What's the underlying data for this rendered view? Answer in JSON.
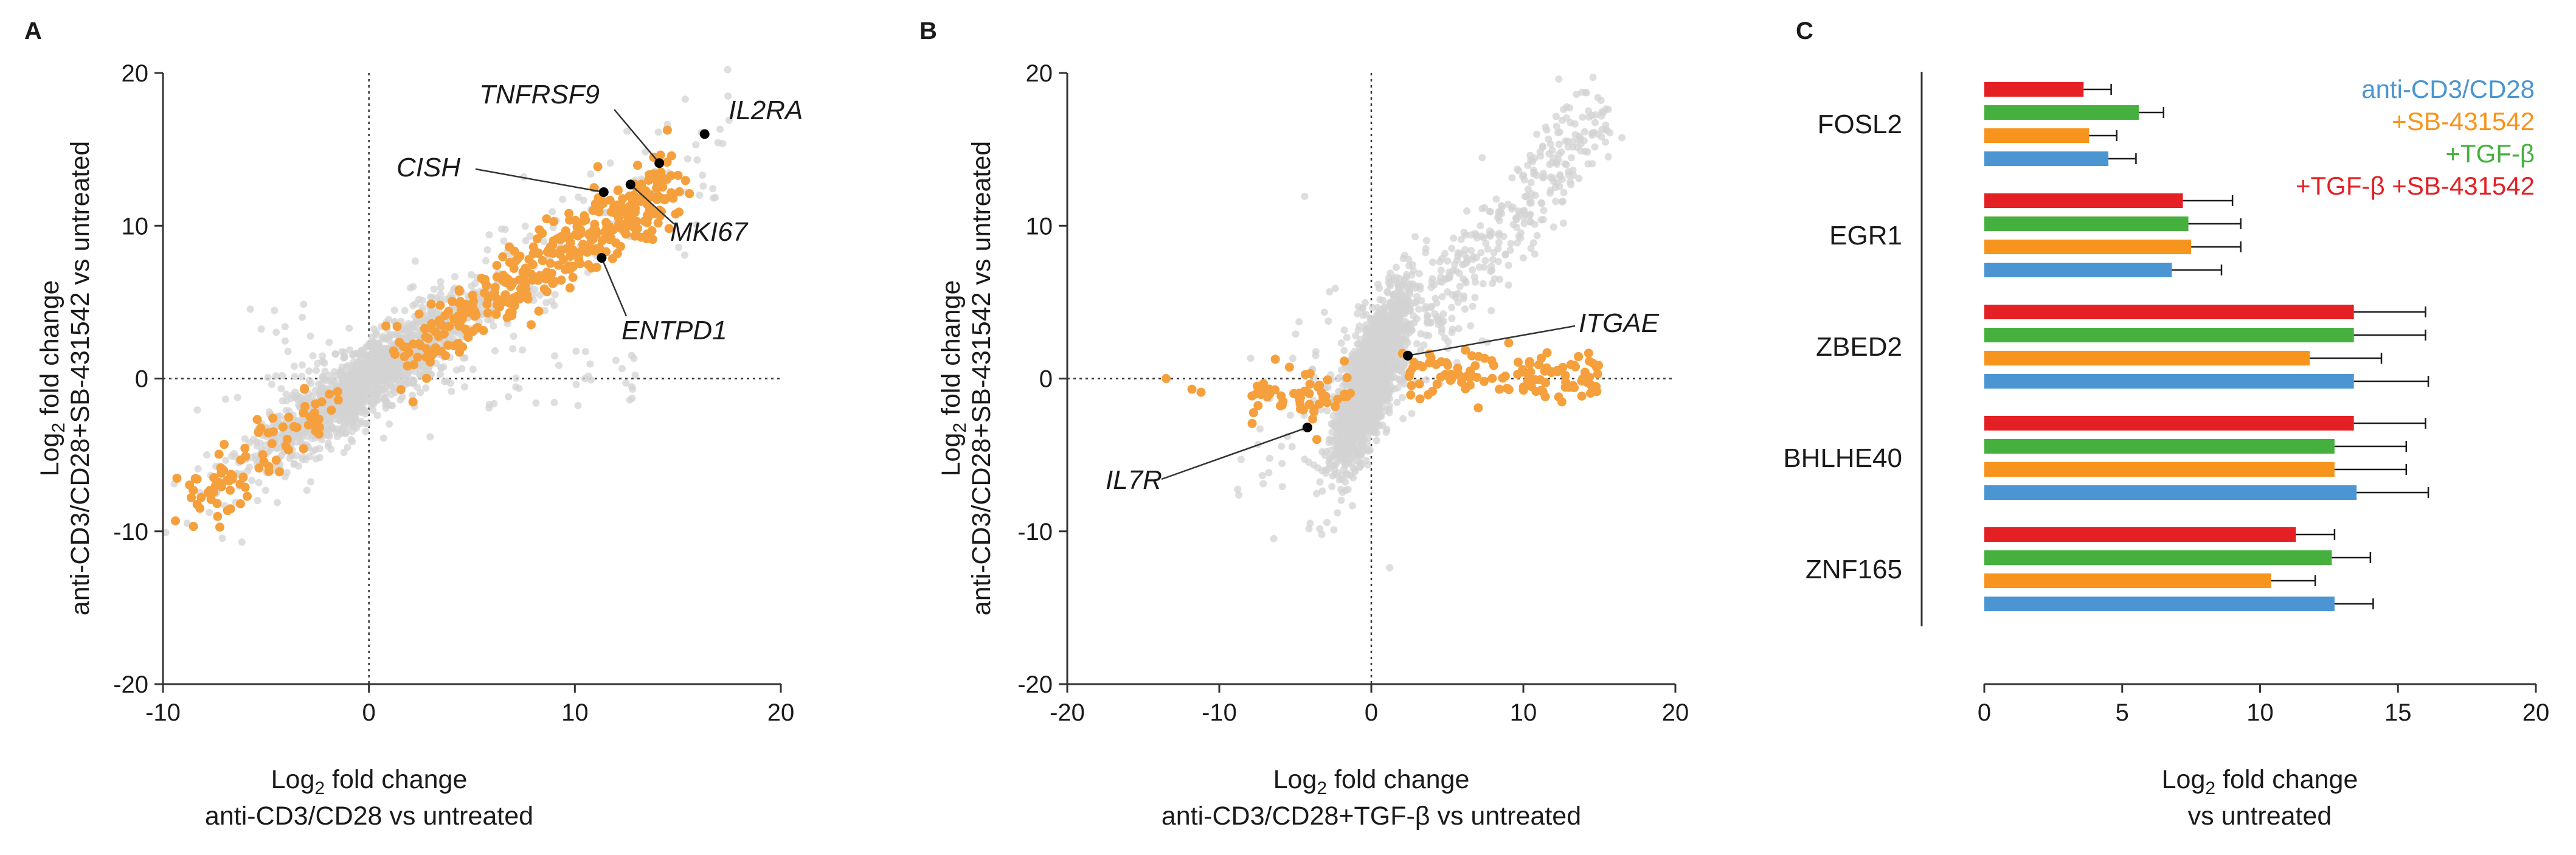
{
  "colors": {
    "background_points": "#d3d3d3",
    "highlight_points": "#f5a03c",
    "labeled_points": "#000000",
    "anti_cd3_cd28": "#4a95d2",
    "sb431542": "#f7941d",
    "tgf_b": "#46b03e",
    "tgf_b_sb431542": "#e42025"
  },
  "panels": [
    {
      "letter": "A",
      "ylabel": {
        "line1_main": "Log",
        "line1_sub": "2",
        "line1_rest": " fold change",
        "line2": "anti-CD3/CD28+SB-431542 vs untreated"
      },
      "xlabel": {
        "line1_main": "Log",
        "line1_sub": "2",
        "line1_rest": " fold change",
        "line2": "anti-CD3/CD28 vs untreated"
      },
      "xticks": [
        "-10",
        "0",
        "10",
        "20"
      ],
      "yticks": [
        "20",
        "10",
        "0",
        "-10",
        "-20"
      ]
    },
    {
      "letter": "B",
      "ylabel": {
        "line1_main": "Log",
        "line1_sub": "2",
        "line1_rest": " fold change",
        "line2": "anti-CD3/CD28+SB-431542 vs untreated"
      },
      "xlabel": {
        "line1_main": "Log",
        "line1_sub": "2",
        "line1_rest": " fold change",
        "line2": "anti-CD3/CD28+TGF-β vs untreated"
      },
      "xticks": [
        "-20",
        "-10",
        "0",
        "10",
        "20"
      ],
      "yticks": [
        "20",
        "10",
        "0",
        "-10",
        "-20"
      ]
    },
    {
      "letter": "C",
      "xlabel": {
        "line1_main": "Log",
        "line1_sub": "2",
        "line1_rest": " fold change",
        "line2": "vs untreated"
      },
      "xticks": [
        "0",
        "5",
        "10",
        "15",
        "20"
      ]
    }
  ],
  "chart_data": [
    {
      "type": "scatter",
      "panel": "A",
      "xlim": [
        -10,
        20
      ],
      "ylim": [
        -20,
        20
      ],
      "reference_lines": {
        "x": 0,
        "y": 0,
        "style": "dotted"
      },
      "labeled_points": [
        {
          "gene": "IL2RA",
          "x": 16.3,
          "y": 16.0
        },
        {
          "gene": "TNFRSF9",
          "x": 14.1,
          "y": 14.1
        },
        {
          "gene": "CISH",
          "x": 11.4,
          "y": 12.2
        },
        {
          "gene": "MKI67",
          "x": 12.7,
          "y": 12.7
        },
        {
          "gene": "ENTPD1",
          "x": 11.3,
          "y": 7.9
        }
      ],
      "series": [
        {
          "name": "",
          "color_key": "background_points",
          "trend": "diagonal, broad cloud around origin"
        },
        {
          "name": "",
          "color_key": "highlight_points",
          "trend": "diagonal, significant genes along y = x"
        }
      ]
    },
    {
      "type": "scatter",
      "panel": "B",
      "xlim": [
        -20,
        20
      ],
      "ylim": [
        -20,
        20
      ],
      "reference_lines": {
        "x": 0,
        "y": 0,
        "style": "dotted"
      },
      "labeled_points": [
        {
          "gene": "ITGAE",
          "x": 2.4,
          "y": 1.5
        },
        {
          "gene": "IL7R",
          "x": -4.2,
          "y": -3.2
        }
      ],
      "series": [
        {
          "name": "",
          "color_key": "background_points",
          "trend": "diagonal cloud plus upper-right arm"
        },
        {
          "name": "",
          "color_key": "highlight_points",
          "trend": "horizontal band near y = 0"
        }
      ]
    },
    {
      "type": "bar",
      "panel": "C",
      "orientation": "horizontal",
      "xlim": [
        0,
        20
      ],
      "categories": [
        "FOSL2",
        "EGR1",
        "ZBED2",
        "BHLHE40",
        "ZNF165"
      ],
      "legend_position": "top-right",
      "series": [
        {
          "name": "anti-CD3/CD28",
          "color_key": "anti_cd3_cd28",
          "values": [
            4.5,
            6.8,
            13.4,
            13.5,
            12.7
          ],
          "errors": [
            1.0,
            1.8,
            2.7,
            2.6,
            1.4
          ]
        },
        {
          "name": "+SB-431542",
          "color_key": "sb431542",
          "values": [
            3.8,
            7.5,
            11.8,
            12.7,
            10.4
          ],
          "errors": [
            1.0,
            1.8,
            2.6,
            2.6,
            1.6
          ]
        },
        {
          "name": "+TGF-β",
          "color_key": "tgf_b",
          "values": [
            5.6,
            7.4,
            13.4,
            12.7,
            12.6
          ],
          "errors": [
            0.9,
            1.9,
            2.6,
            2.6,
            1.4
          ]
        },
        {
          "name": "+TGF-β +SB-431542",
          "color_key": "tgf_b_sb431542",
          "values": [
            3.6,
            7.2,
            13.4,
            13.4,
            11.3
          ],
          "errors": [
            1.0,
            1.8,
            2.6,
            2.6,
            1.4
          ]
        }
      ]
    }
  ]
}
